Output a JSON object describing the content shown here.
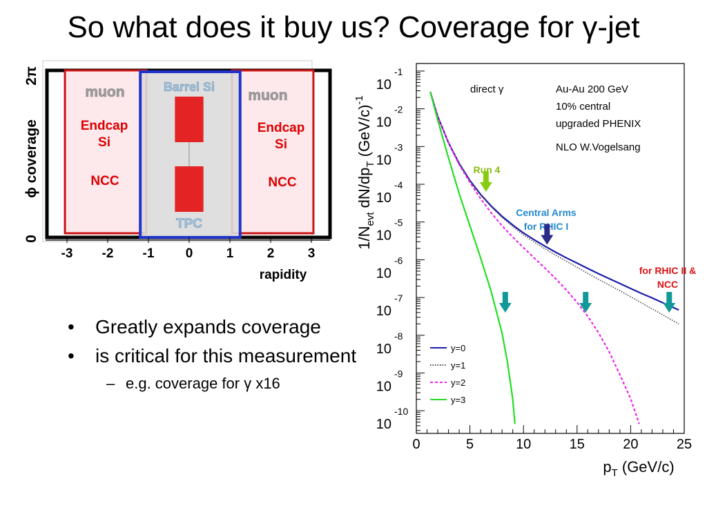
{
  "slide": {
    "title": "So what does it buy us? Coverage for γ-jet",
    "bullets": [
      "Greatly expands coverage",
      "is critical for this measurement"
    ],
    "sub_bullet": "e.g. coverage for γ x16",
    "bullet_glyph": "•",
    "dash_glyph": "–"
  },
  "coverage_diagram": {
    "y_axis_label": "ϕ coverage",
    "y_top_label": "2π",
    "y_bottom_label": "0",
    "x_axis_label": "rapidity",
    "x_ticks": [
      "-3",
      "-2",
      "-1",
      "0",
      "1",
      "2",
      "3"
    ],
    "labels": {
      "muon_left": "muon",
      "muon_right": "muon",
      "barrel_si": "Barrel Si",
      "tpc": "TPC",
      "endcap_left": "Endcap Si",
      "endcap_right": "Endcap Si",
      "ncc_left": "NCC",
      "ncc_right": "NCC"
    },
    "colors": {
      "endcap_text": "#dd0000",
      "muon_text": "#a0a0a0",
      "barrel_text": "#a8c8e0",
      "central_fill": "#e42424",
      "barrel_box": "#2233cc",
      "endcap_box": "#cc1111",
      "endcap_fill": "#fde8ec",
      "barrel_fill": "#dcdcdc"
    }
  },
  "chart_data": {
    "type": "line",
    "xlabel": "p_T (GeV/c)",
    "ylabel": "1/N_evt dN/dp_T (GeV/c)^-1",
    "xlim": [
      0,
      25
    ],
    "ylim": [
      -10,
      -1
    ],
    "log_y": true,
    "x_ticks": [
      "0",
      "5",
      "10",
      "15",
      "20",
      "25"
    ],
    "y_tick_exponents": [
      "-1",
      "-2",
      "-3",
      "-4",
      "-5",
      "-6",
      "-7",
      "-8",
      "-9",
      "-10"
    ],
    "y_tick_base": "10",
    "annotations": {
      "direct": "direct γ",
      "info": [
        "Au-Au 200 GeV",
        "10% central",
        "upgraded PHENIX",
        "NLO W.Vogelsang"
      ],
      "run4": "Run 4",
      "central_arms": [
        "Central Arms",
        "for RHIC I"
      ],
      "rhic2": [
        "for RHIC II &",
        "NCC"
      ]
    },
    "arrows": [
      {
        "x": 6.5,
        "log10_y": -4.2,
        "color": "#88cc11",
        "label": "run4"
      },
      {
        "x": 12.2,
        "log10_y": -5.6,
        "color": "#2a2a88",
        "label": "central_arms"
      },
      {
        "x": 8.3,
        "log10_y": -7.4,
        "color": "#119999",
        "label": "rhic2"
      },
      {
        "x": 15.8,
        "log10_y": -7.4,
        "color": "#119999",
        "label": "rhic2"
      },
      {
        "x": 23.6,
        "log10_y": -7.4,
        "color": "#119999",
        "label": "rhic2"
      }
    ],
    "series": [
      {
        "name": "y=0",
        "color": "#1a1aaa",
        "dash": "solid",
        "x": [
          1.3,
          2,
          3,
          4,
          5,
          6,
          7,
          8,
          9,
          10,
          11,
          12,
          13,
          14,
          15,
          16,
          17,
          18,
          19,
          20,
          21,
          22,
          23,
          24.5
        ],
        "log10_y": [
          -1.55,
          -2.2,
          -2.9,
          -3.45,
          -3.9,
          -4.27,
          -4.58,
          -4.85,
          -5.08,
          -5.29,
          -5.47,
          -5.64,
          -5.8,
          -5.95,
          -6.09,
          -6.23,
          -6.37,
          -6.5,
          -6.63,
          -6.76,
          -6.89,
          -7.01,
          -7.14,
          -7.33
        ]
      },
      {
        "name": "y=1",
        "color": "#444444",
        "dash": "dotted",
        "x": [
          1.3,
          2,
          3,
          4,
          5,
          6,
          7,
          8,
          9,
          10,
          11,
          12,
          13,
          14,
          15,
          16,
          17,
          18,
          19,
          20,
          21,
          22,
          23,
          24.5
        ],
        "log10_y": [
          -1.55,
          -2.2,
          -2.9,
          -3.45,
          -3.9,
          -4.28,
          -4.6,
          -4.88,
          -5.12,
          -5.34,
          -5.53,
          -5.71,
          -5.88,
          -6.04,
          -6.2,
          -6.36,
          -6.52,
          -6.67,
          -6.82,
          -6.98,
          -7.14,
          -7.3,
          -7.46,
          -7.7
        ]
      },
      {
        "name": "y=2",
        "color": "#ee22ee",
        "dash": "dashed",
        "x": [
          1.3,
          2,
          3,
          4,
          5,
          6,
          7,
          8,
          9,
          10,
          11,
          12,
          13,
          14,
          15,
          16,
          17,
          18,
          19,
          20,
          20.8
        ],
        "log10_y": [
          -1.55,
          -2.2,
          -2.9,
          -3.48,
          -3.95,
          -4.38,
          -4.76,
          -5.1,
          -5.4,
          -5.68,
          -5.95,
          -6.22,
          -6.5,
          -6.8,
          -7.13,
          -7.5,
          -7.93,
          -8.44,
          -9.05,
          -9.68,
          -10.35
        ]
      },
      {
        "name": "y=3",
        "color": "#22dd22",
        "dash": "solid",
        "x": [
          1.3,
          2,
          3,
          4,
          5,
          6,
          7,
          8,
          8.5,
          9,
          9.2
        ],
        "log10_y": [
          -1.55,
          -2.3,
          -3.3,
          -4.25,
          -5.1,
          -5.95,
          -6.85,
          -7.95,
          -8.7,
          -9.7,
          -10.35
        ]
      }
    ]
  }
}
